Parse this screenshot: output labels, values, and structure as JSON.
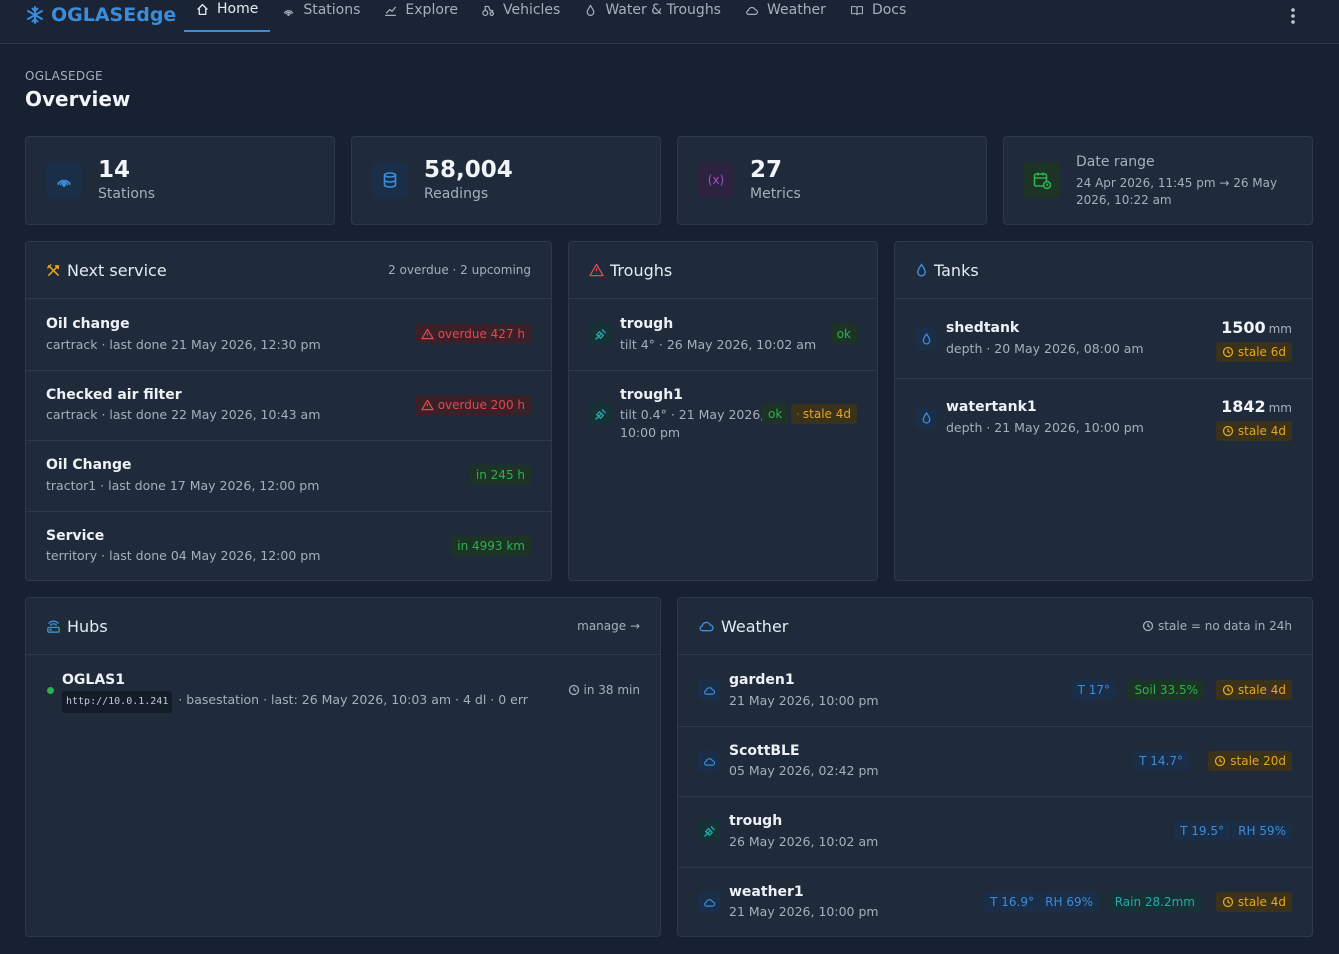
{
  "app": {
    "brand": "OGLASEdge"
  },
  "nav": {
    "items": [
      {
        "label": "Home",
        "icon": "home-icon"
      },
      {
        "label": "Stations",
        "icon": "broadcast-icon"
      },
      {
        "label": "Explore",
        "icon": "chart-icon"
      },
      {
        "label": "Vehicles",
        "icon": "tractor-icon"
      },
      {
        "label": "Water & Troughs",
        "icon": "droplet-icon"
      },
      {
        "label": "Weather",
        "icon": "cloud-icon"
      },
      {
        "label": "Docs",
        "icon": "book-icon"
      }
    ],
    "active": "Home"
  },
  "page": {
    "breadcrumb": "OGLASEDGE",
    "title": "Overview"
  },
  "stats": {
    "stations": {
      "value": "14",
      "label": "Stations"
    },
    "readings": {
      "value": "58,004",
      "label": "Readings"
    },
    "metrics": {
      "value": "27",
      "label": "Metrics"
    },
    "date_range": {
      "label": "Date range",
      "value": "24 Apr 2026, 11:45 pm → 26 May 2026, 10:22 am"
    }
  },
  "next_service": {
    "title": "Next service",
    "summary": "2 overdue · 2 upcoming",
    "items": [
      {
        "name": "Oil change",
        "detail": "cartrack · last done 21 May 2026, 12:30 pm",
        "status": "overdue 427 h",
        "kind": "overdue"
      },
      {
        "name": "Checked air filter",
        "detail": "cartrack · last done 22 May 2026, 10:43 am",
        "status": "overdue 200 h",
        "kind": "overdue"
      },
      {
        "name": "Oil Change",
        "detail": "tractor1 · last done 17 May 2026, 12:00 pm",
        "status": "in 245 h",
        "kind": "upcoming"
      },
      {
        "name": "Service",
        "detail": "territory · last done 04 May 2026, 12:00 pm",
        "status": "in 4993 km",
        "kind": "upcoming"
      }
    ]
  },
  "troughs": {
    "title": "Troughs",
    "items": [
      {
        "name": "trough",
        "detail": "tilt 4° · 26 May 2026, 10:02 am",
        "status": "ok"
      },
      {
        "name": "trough1",
        "detail_line1": "tilt 0.4° · 21 May 2026,",
        "detail_line2": "10:00 pm",
        "status": "ok",
        "stale": "stale 4d"
      }
    ]
  },
  "tanks": {
    "title": "Tanks",
    "items": [
      {
        "name": "shedtank",
        "detail": "depth · 20 May 2026, 08:00 am",
        "value": "1500",
        "unit": "mm",
        "stale": "stale 6d"
      },
      {
        "name": "watertank1",
        "detail": "depth · 21 May 2026, 10:00 pm",
        "value": "1842",
        "unit": "mm",
        "stale": "stale 4d"
      }
    ]
  },
  "hubs": {
    "title": "Hubs",
    "manage": "manage →",
    "items": [
      {
        "name": "OGLAS1",
        "url": "http://10.0.1.241",
        "detail": "· basestation · last: 26 May 2026, 10:03 am · 4 dl · 0 err",
        "next": "in 38 min",
        "online_color": "#2eb14e"
      }
    ]
  },
  "weather": {
    "title": "Weather",
    "legend": "stale = no data in 24h",
    "items": [
      {
        "name": "garden1",
        "time": "21 May 2026, 10:00 pm",
        "icon": "cloud-icon",
        "temp": "T 17°",
        "soil": "Soil 33.5%",
        "stale": "stale 4d"
      },
      {
        "name": "ScottBLE",
        "time": "05 May 2026, 02:42 pm",
        "icon": "cloud-icon",
        "temp": "T 14.7°",
        "stale": "stale 20d"
      },
      {
        "name": "trough",
        "time": "26 May 2026, 10:02 am",
        "icon": "trough-icon",
        "temp": "T 19.5°",
        "rh": "RH 59%"
      },
      {
        "name": "weather1",
        "time": "21 May 2026, 10:00 pm",
        "icon": "cloud-icon",
        "temp": "T 16.9°",
        "rh": "RH 69%",
        "rain": "Rain 28.2mm",
        "stale": "stale 4d"
      }
    ]
  },
  "colors": {
    "accent": "#3b8ddc",
    "danger": "#e0494f",
    "ok": "#2eb14e",
    "warn": "#e6a61e",
    "teal": "#26a9a9",
    "purple": "#a34fc9"
  }
}
